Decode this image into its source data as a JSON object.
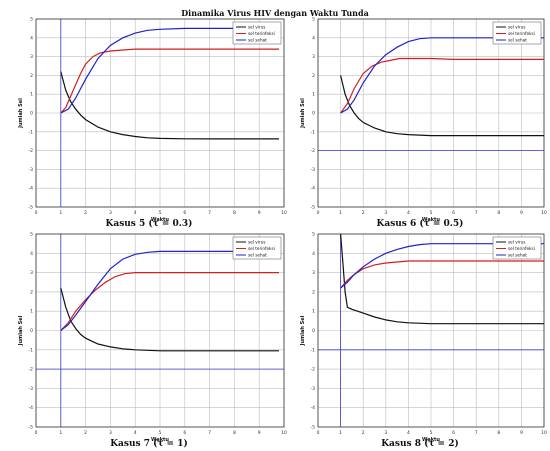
{
  "title": "Dinamika Virus HIV dengan Waktu Tunda",
  "colors": {
    "infected": "#d21f1f",
    "healthy": "#1f22c8",
    "virus": "#111111",
    "grid": "#bdbdbd",
    "ref": "#3a3ad6"
  },
  "chart_data": [
    {
      "type": "line",
      "caption": "Kasus 5 (τ = 0.3)",
      "xlabel": "Waktu",
      "ylabel": "Jumlah Sel",
      "xlim": [
        0,
        10
      ],
      "ylim": [
        -5,
        5
      ],
      "x_ticks": [
        0,
        1,
        2,
        3,
        4,
        5,
        6,
        7,
        8,
        9,
        10
      ],
      "y_ticks": [
        -5,
        -4,
        -3,
        -2,
        -1,
        0,
        1,
        2,
        3,
        4,
        5
      ],
      "ref_x": 1,
      "legend": {
        "position": "top-right",
        "entries": [
          "sel virus",
          "sel terinfeksi",
          "sel sehat"
        ]
      },
      "series": [
        {
          "name": "sel virus",
          "color": "#111111",
          "x": [
            1.0,
            1.2,
            1.4,
            1.6,
            1.8,
            2.0,
            2.5,
            3.0,
            3.5,
            4.0,
            4.5,
            5.0,
            6.0,
            7.0,
            8.0,
            9.0,
            9.8
          ],
          "y": [
            2.2,
            1.2,
            0.6,
            0.2,
            -0.1,
            -0.35,
            -0.75,
            -1.0,
            -1.15,
            -1.25,
            -1.32,
            -1.35,
            -1.37,
            -1.38,
            -1.38,
            -1.38,
            -1.38
          ]
        },
        {
          "name": "sel terinfeksi",
          "color": "#d21f1f",
          "x": [
            1.0,
            1.2,
            1.5,
            1.8,
            2.0,
            2.3,
            2.6,
            3.0,
            3.5,
            4.0,
            5.0,
            6.0,
            7.0,
            8.0,
            9.0,
            9.8
          ],
          "y": [
            0.0,
            0.3,
            1.2,
            2.1,
            2.6,
            3.0,
            3.2,
            3.3,
            3.35,
            3.4,
            3.4,
            3.4,
            3.4,
            3.4,
            3.4,
            3.4
          ]
        },
        {
          "name": "sel sehat",
          "color": "#1f22c8",
          "x": [
            1.0,
            1.3,
            1.6,
            2.0,
            2.5,
            3.0,
            3.5,
            4.0,
            4.5,
            5.0,
            6.0,
            7.0,
            8.0,
            9.0,
            9.8
          ],
          "y": [
            0.0,
            0.2,
            0.8,
            1.8,
            2.9,
            3.6,
            4.0,
            4.25,
            4.4,
            4.45,
            4.5,
            4.5,
            4.5,
            4.5,
            4.5
          ]
        }
      ]
    },
    {
      "type": "line",
      "caption": "Kasus 6 (τ = 0.5)",
      "xlabel": "Waktu",
      "ylabel": "Jumlah Sel",
      "xlim": [
        0,
        10
      ],
      "ylim": [
        -5,
        5
      ],
      "x_ticks": [
        0,
        1,
        2,
        3,
        4,
        5,
        6,
        7,
        8,
        9,
        10
      ],
      "y_ticks": [
        -5,
        -4,
        -3,
        -2,
        -1,
        0,
        1,
        2,
        3,
        4,
        5
      ],
      "ref_y": -2,
      "legend": {
        "position": "top-right",
        "entries": [
          "sel virus",
          "sel terinfeksi",
          "sel sehat"
        ]
      },
      "series": [
        {
          "name": "sel virus",
          "color": "#111111",
          "x": [
            1.0,
            1.2,
            1.4,
            1.6,
            1.8,
            2.0,
            2.5,
            3.0,
            3.5,
            4.0,
            5.0,
            6.0,
            7.0,
            8.0,
            9.0,
            10.0
          ],
          "y": [
            2.0,
            1.0,
            0.4,
            0.0,
            -0.3,
            -0.5,
            -0.8,
            -1.0,
            -1.1,
            -1.15,
            -1.2,
            -1.2,
            -1.2,
            -1.2,
            -1.2,
            -1.2
          ]
        },
        {
          "name": "sel terinfeksi",
          "color": "#d21f1f",
          "x": [
            1.0,
            1.3,
            1.6,
            2.0,
            2.4,
            2.8,
            3.2,
            3.6,
            4.0,
            5.0,
            6.0,
            7.0,
            8.0,
            9.0,
            10.0
          ],
          "y": [
            0.0,
            0.5,
            1.3,
            2.1,
            2.5,
            2.7,
            2.8,
            2.9,
            2.9,
            2.9,
            2.85,
            2.85,
            2.85,
            2.85,
            2.85
          ]
        },
        {
          "name": "sel sehat",
          "color": "#1f22c8",
          "x": [
            1.0,
            1.3,
            1.6,
            2.0,
            2.5,
            3.0,
            3.5,
            4.0,
            4.5,
            5.0,
            6.0,
            7.0,
            8.0,
            9.0,
            10.0
          ],
          "y": [
            0.0,
            0.2,
            0.7,
            1.6,
            2.5,
            3.1,
            3.5,
            3.8,
            3.95,
            4.0,
            4.0,
            4.0,
            4.0,
            4.0,
            4.0
          ]
        }
      ]
    },
    {
      "type": "line",
      "caption": "Kasus 7 (τ = 1)",
      "xlabel": "Waktu",
      "ylabel": "Jumlah Sel",
      "xlim": [
        0,
        10
      ],
      "ylim": [
        -5,
        5
      ],
      "x_ticks": [
        0,
        1,
        2,
        3,
        4,
        5,
        6,
        7,
        8,
        9,
        10
      ],
      "y_ticks": [
        -5,
        -4,
        -3,
        -2,
        -1,
        0,
        1,
        2,
        3,
        4,
        5
      ],
      "ref_x": 1,
      "ref_y": -2,
      "legend": {
        "position": "top-right",
        "entries": [
          "sel virus",
          "sel terinfeksi",
          "sel sehat"
        ]
      },
      "series": [
        {
          "name": "sel virus",
          "color": "#111111",
          "x": [
            1.0,
            1.2,
            1.4,
            1.6,
            1.8,
            2.0,
            2.5,
            3.0,
            3.5,
            4.0,
            5.0,
            6.0,
            7.0,
            8.0,
            9.0,
            9.8
          ],
          "y": [
            2.2,
            1.2,
            0.5,
            0.1,
            -0.2,
            -0.4,
            -0.7,
            -0.85,
            -0.95,
            -1.0,
            -1.05,
            -1.05,
            -1.05,
            -1.05,
            -1.05,
            -1.05
          ]
        },
        {
          "name": "sel terinfeksi",
          "color": "#d21f1f",
          "x": [
            1.0,
            1.3,
            1.6,
            2.0,
            2.4,
            2.8,
            3.2,
            3.6,
            4.0,
            5.0,
            6.0,
            7.0,
            8.0,
            9.0,
            9.8
          ],
          "y": [
            0.0,
            0.4,
            1.0,
            1.6,
            2.1,
            2.5,
            2.8,
            2.95,
            3.0,
            3.0,
            3.0,
            3.0,
            3.0,
            3.0,
            3.0
          ]
        },
        {
          "name": "sel sehat",
          "color": "#1f22c8",
          "x": [
            1.0,
            1.3,
            1.6,
            2.0,
            2.5,
            3.0,
            3.5,
            4.0,
            4.5,
            5.0,
            6.0,
            7.0,
            8.0,
            9.0,
            9.8
          ],
          "y": [
            0.0,
            0.3,
            0.8,
            1.5,
            2.4,
            3.2,
            3.7,
            3.95,
            4.05,
            4.1,
            4.1,
            4.1,
            4.1,
            4.1,
            4.1
          ]
        }
      ]
    },
    {
      "type": "line",
      "caption": "Kasus 8 (τ = 2)",
      "xlabel": "Waktu",
      "ylabel": "Jumlah Sel",
      "xlim": [
        0,
        10
      ],
      "ylim": [
        -5,
        5
      ],
      "x_ticks": [
        0,
        1,
        2,
        3,
        4,
        5,
        6,
        7,
        8,
        9,
        10
      ],
      "y_ticks": [
        -5,
        -4,
        -3,
        -2,
        -1,
        0,
        1,
        2,
        3,
        4,
        5
      ],
      "ref_x": 1,
      "ref_y": -1,
      "legend": {
        "position": "top-right",
        "entries": [
          "sel virus",
          "sel terinfeksi",
          "sel sehat"
        ]
      },
      "series": [
        {
          "name": "sel virus",
          "color": "#111111",
          "x": [
            1.0,
            1.1,
            1.2,
            1.3,
            1.5,
            2.0,
            2.5,
            3.0,
            3.5,
            4.0,
            5.0,
            6.0,
            7.0,
            8.0,
            9.0,
            10.0
          ],
          "y": [
            5.0,
            3.5,
            2.0,
            1.2,
            1.1,
            0.9,
            0.7,
            0.55,
            0.45,
            0.4,
            0.35,
            0.35,
            0.35,
            0.35,
            0.35,
            0.35
          ]
        },
        {
          "name": "sel terinfeksi",
          "color": "#d21f1f",
          "x": [
            1.0,
            1.3,
            1.6,
            2.0,
            2.5,
            3.0,
            3.5,
            4.0,
            5.0,
            6.0,
            7.0,
            8.0,
            9.0,
            10.0
          ],
          "y": [
            2.2,
            2.6,
            2.9,
            3.2,
            3.4,
            3.5,
            3.55,
            3.6,
            3.6,
            3.6,
            3.6,
            3.6,
            3.6,
            3.6
          ]
        },
        {
          "name": "sel sehat",
          "color": "#1f22c8",
          "x": [
            1.0,
            1.3,
            1.6,
            2.0,
            2.5,
            3.0,
            3.5,
            4.0,
            4.5,
            5.0,
            6.0,
            7.0,
            8.0,
            9.0,
            10.0
          ],
          "y": [
            2.2,
            2.5,
            2.9,
            3.3,
            3.7,
            4.0,
            4.2,
            4.35,
            4.45,
            4.5,
            4.5,
            4.5,
            4.5,
            4.5,
            4.5
          ]
        }
      ]
    }
  ]
}
